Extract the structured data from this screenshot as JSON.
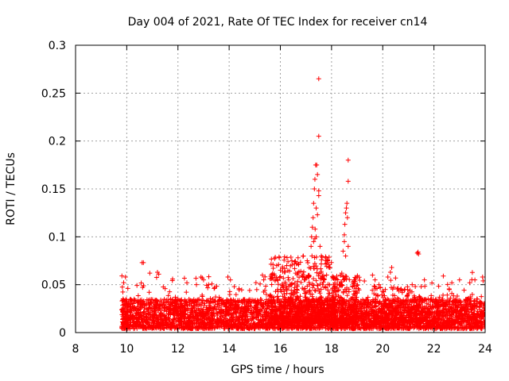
{
  "chart_data": {
    "type": "scatter",
    "title": "Day 004 of 2021, Rate Of TEC Index for receiver cn14",
    "xlabel": "GPS time / hours",
    "ylabel": "ROTI / TECUs",
    "xlim": [
      8,
      24
    ],
    "ylim": [
      0,
      0.3
    ],
    "xticks": [
      8,
      10,
      12,
      14,
      16,
      18,
      20,
      22,
      24
    ],
    "yticks": [
      0,
      0.05,
      0.1,
      0.15,
      0.2,
      0.25,
      0.3
    ],
    "xtick_labels": [
      "8",
      "10",
      "12",
      "14",
      "16",
      "18",
      "20",
      "22",
      "24"
    ],
    "ytick_labels": [
      "0",
      "0.05",
      "0.1",
      "0.15",
      "0.2",
      "0.25",
      "0.3"
    ],
    "grid": true,
    "marker": "+",
    "marker_color": "#ff0000",
    "dense_band": {
      "x_start": 9.8,
      "x_end": 24.0,
      "density_per_hour": 300,
      "baseline_min": 0.004,
      "baseline_max": 0.035,
      "spike_probability": 0.05,
      "spike_max": 0.03
    },
    "enhanced_activity": [
      {
        "x_range": [
          15.6,
          18.0
        ],
        "extra_points": 500,
        "y_range": [
          0.01,
          0.08
        ]
      },
      {
        "x_range": [
          18.0,
          19.1
        ],
        "extra_points": 250,
        "y_range": [
          0.01,
          0.06
        ]
      },
      {
        "x_range": [
          19.5,
          21.5
        ],
        "extra_points": 180,
        "y_range": [
          0.01,
          0.05
        ]
      }
    ],
    "series": [
      {
        "name": "cn14 ROTI outliers",
        "points": [
          [
            9.95,
            0.058
          ],
          [
            10.6,
            0.073
          ],
          [
            10.65,
            0.073
          ],
          [
            10.9,
            0.062
          ],
          [
            11.2,
            0.063
          ],
          [
            11.25,
            0.061
          ],
          [
            12.35,
            0.052
          ],
          [
            12.9,
            0.058
          ],
          [
            12.95,
            0.057
          ],
          [
            13.0,
            0.055
          ],
          [
            13.2,
            0.05
          ],
          [
            13.95,
            0.058
          ],
          [
            14.05,
            0.055
          ],
          [
            14.2,
            0.048
          ],
          [
            14.8,
            0.044
          ],
          [
            15.3,
            0.06
          ],
          [
            15.35,
            0.055
          ],
          [
            16.25,
            0.07
          ],
          [
            16.3,
            0.074
          ],
          [
            16.45,
            0.075
          ],
          [
            16.6,
            0.062
          ],
          [
            16.8,
            0.064
          ],
          [
            16.9,
            0.08
          ],
          [
            17.05,
            0.075
          ],
          [
            17.2,
            0.09
          ],
          [
            17.22,
            0.1
          ],
          [
            17.25,
            0.11
          ],
          [
            17.28,
            0.12
          ],
          [
            17.3,
            0.135
          ],
          [
            17.33,
            0.15
          ],
          [
            17.35,
            0.16
          ],
          [
            17.38,
            0.175
          ],
          [
            17.42,
            0.175
          ],
          [
            17.45,
            0.165
          ],
          [
            17.5,
            0.148
          ],
          [
            17.3,
            0.095
          ],
          [
            17.4,
            0.1
          ],
          [
            17.45,
            0.123
          ],
          [
            17.5,
            0.143
          ],
          [
            17.55,
            0.09
          ],
          [
            17.6,
            0.08
          ],
          [
            17.5,
            0.265
          ],
          [
            17.5,
            0.205
          ],
          [
            17.4,
            0.13
          ],
          [
            17.36,
            0.108
          ],
          [
            17.35,
            0.098
          ],
          [
            17.9,
            0.071
          ],
          [
            17.85,
            0.075
          ],
          [
            18.3,
            0.05
          ],
          [
            18.4,
            0.062
          ],
          [
            18.45,
            0.085
          ],
          [
            18.5,
            0.095
          ],
          [
            18.5,
            0.102
          ],
          [
            18.52,
            0.113
          ],
          [
            18.55,
            0.125
          ],
          [
            18.58,
            0.13
          ],
          [
            18.6,
            0.135
          ],
          [
            18.62,
            0.12
          ],
          [
            18.65,
            0.09
          ],
          [
            18.55,
            0.08
          ],
          [
            18.65,
            0.18
          ],
          [
            18.65,
            0.158
          ],
          [
            19.6,
            0.06
          ],
          [
            19.7,
            0.055
          ],
          [
            19.85,
            0.05
          ],
          [
            20.1,
            0.045
          ],
          [
            20.2,
            0.058
          ],
          [
            20.3,
            0.063
          ],
          [
            20.35,
            0.068
          ],
          [
            20.7,
            0.045
          ],
          [
            21.15,
            0.05
          ],
          [
            21.35,
            0.083
          ],
          [
            21.4,
            0.082
          ],
          [
            21.38,
            0.084
          ],
          [
            21.5,
            0.048
          ],
          [
            22.6,
            0.045
          ],
          [
            22.7,
            0.052
          ],
          [
            23.0,
            0.055
          ],
          [
            23.4,
            0.052
          ],
          [
            23.6,
            0.055
          ],
          [
            23.9,
            0.058
          ],
          [
            23.92,
            0.054
          ]
        ]
      }
    ]
  }
}
